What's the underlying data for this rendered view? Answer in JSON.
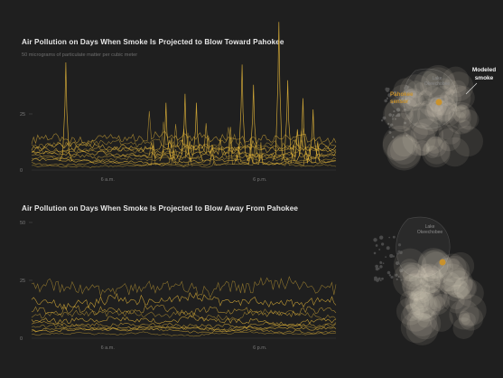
{
  "colors": {
    "background": "#1f1f1f",
    "line": "#e8b93a",
    "town_marker": "#c9922c",
    "smoke": "#fff4dc",
    "grid": "#3a3a3a"
  },
  "chart_data": [
    {
      "type": "line",
      "title": "Air Pollution on Days When Smoke Is Projected to Blow Toward Pahokee",
      "subtitle": "50 micrograms of particulate matter per cubic meter",
      "y_tick_labels": [
        "25",
        "0"
      ],
      "x_tick_labels": [
        "6 a.m.",
        "6 p.m."
      ],
      "ylim": [
        0,
        50
      ],
      "x_range_hours": [
        0,
        24
      ],
      "x_ticks": [
        6,
        18
      ],
      "y_ticks": [
        25,
        0
      ],
      "spikes": [
        {
          "x": 2.7,
          "y": 48
        },
        {
          "x": 10.6,
          "y": 30
        },
        {
          "x": 12.1,
          "y": 34
        },
        {
          "x": 13.0,
          "y": 30
        },
        {
          "x": 16.6,
          "y": 47
        },
        {
          "x": 17.5,
          "y": 38
        },
        {
          "x": 19.5,
          "y": 66
        },
        {
          "x": 20.2,
          "y": 40
        },
        {
          "x": 21.4,
          "y": 32
        },
        {
          "x": 22.2,
          "y": 27
        }
      ],
      "baseline_levels": [
        2,
        3,
        4,
        5,
        6,
        7,
        8,
        9,
        10,
        11,
        13
      ],
      "map": {
        "lake_label": "Lake Okeechobee",
        "town_label": "Pahokee",
        "town_label_2": "sensor",
        "smoke_label_1": "Modeled",
        "smoke_label_2": "smoke"
      }
    },
    {
      "type": "line",
      "title": "Air Pollution on Days When Smoke Is Projected to Blow Away From Pahokee",
      "y_tick_labels": [
        "50",
        "25",
        "0"
      ],
      "x_tick_labels": [
        "6 a.m.",
        "6 p.m."
      ],
      "ylim": [
        0,
        50
      ],
      "x_range_hours": [
        0,
        24
      ],
      "x_ticks": [
        6,
        18
      ],
      "y_ticks": [
        50,
        25,
        0
      ],
      "baseline_levels": [
        2,
        3,
        4,
        5,
        6,
        8,
        10,
        12,
        16,
        22
      ],
      "map": {
        "lake_label": "Lake Okeechobee"
      }
    }
  ]
}
